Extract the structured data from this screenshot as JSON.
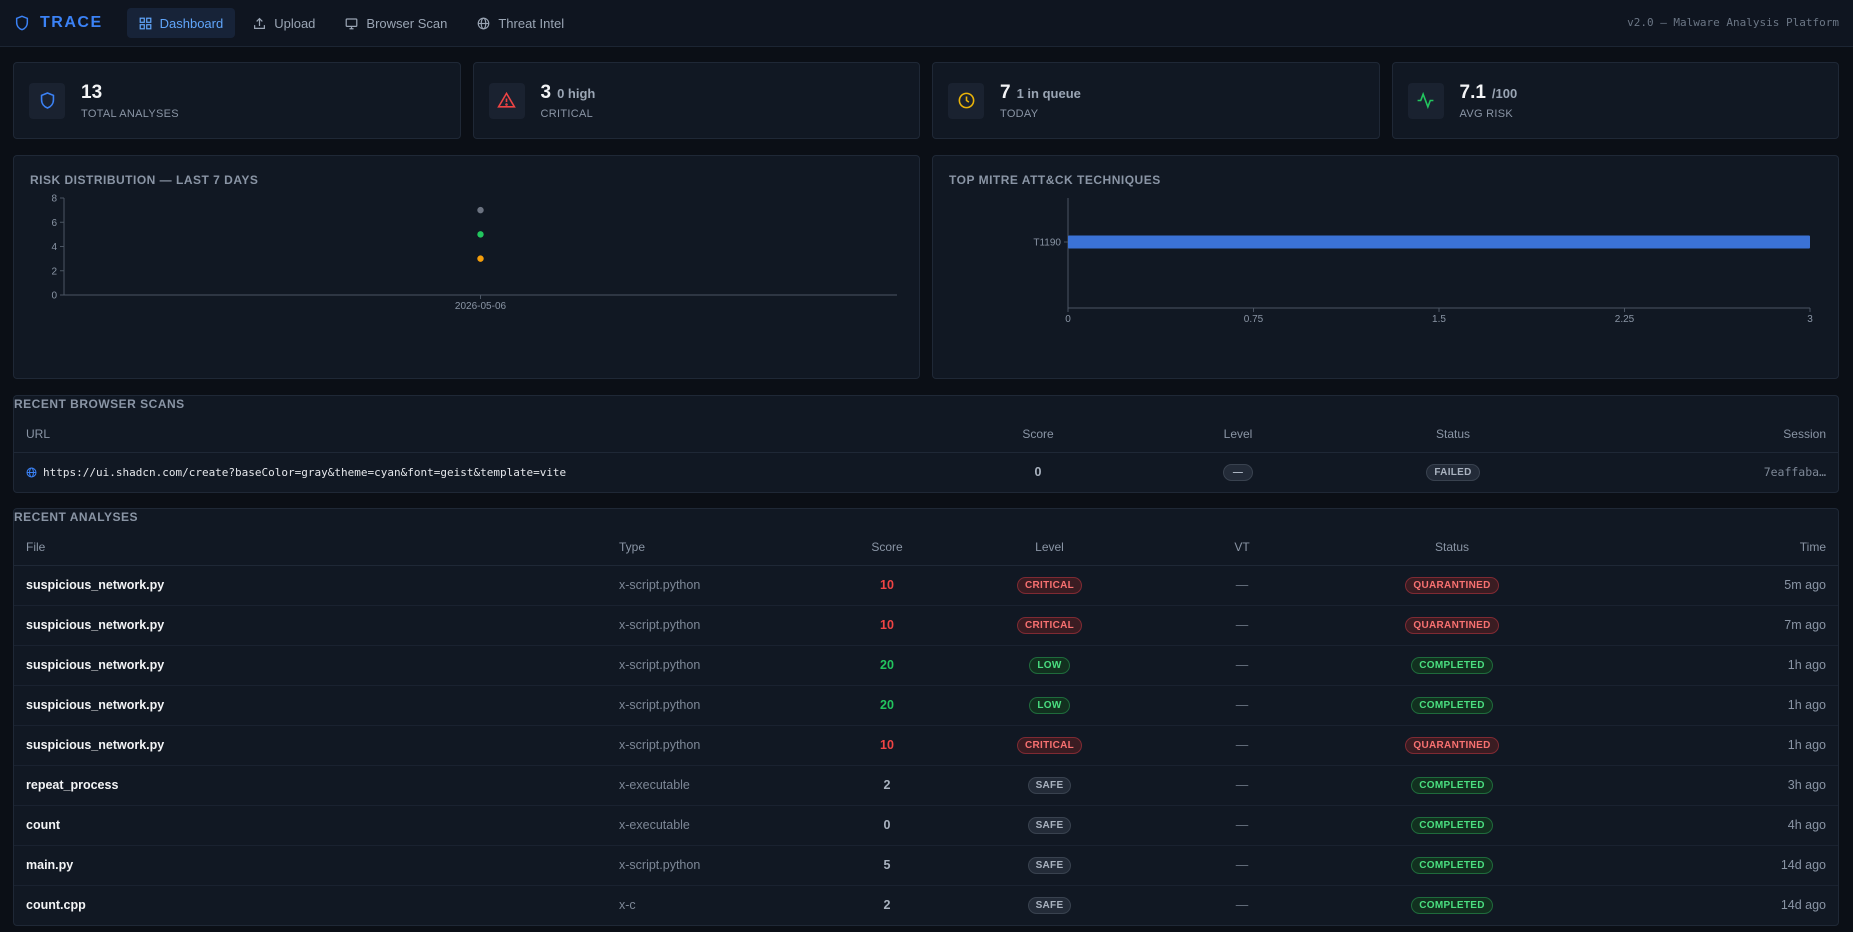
{
  "app": {
    "brand": "TRACE",
    "version": "v2.0 — Malware Analysis Platform"
  },
  "nav": [
    {
      "label": "Dashboard",
      "icon": "grid-icon",
      "active": true
    },
    {
      "label": "Upload",
      "icon": "upload-icon"
    },
    {
      "label": "Browser Scan",
      "icon": "monitor-icon"
    },
    {
      "label": "Threat Intel",
      "icon": "globe-icon"
    }
  ],
  "stats": [
    {
      "value": "13",
      "sub": "",
      "label": "TOTAL ANALYSES",
      "icon": "shield-icon",
      "color": "#3b82f6"
    },
    {
      "value": "3",
      "sub": "0 high",
      "label": "CRITICAL",
      "icon": "alert-triangle-icon",
      "color": "#ef4444"
    },
    {
      "value": "7",
      "sub": "1 in queue",
      "label": "TODAY",
      "icon": "clock-icon",
      "color": "#eab308"
    },
    {
      "value": "7.1",
      "sub": "/100",
      "label": "AVG RISK",
      "icon": "activity-icon",
      "color": "#22c55e"
    }
  ],
  "risk_panel": {
    "title": "RISK DISTRIBUTION — LAST 7 DAYS"
  },
  "mitre_panel": {
    "title": "TOP MITRE ATT&CK TECHNIQUES"
  },
  "chart_data": [
    {
      "type": "scatter",
      "x": [
        "2026-05-06"
      ],
      "series": [
        {
          "values": [
            7
          ],
          "color": "#6b7280"
        },
        {
          "values": [
            5
          ],
          "color": "#22c55e"
        },
        {
          "values": [
            3
          ],
          "color": "#f59e0b"
        }
      ],
      "yticks": [
        "0",
        "2",
        "4",
        "6",
        "8"
      ],
      "ylim": [
        0,
        8
      ]
    },
    {
      "type": "bar",
      "orientation": "horizontal",
      "categories": [
        "T1190"
      ],
      "values": [
        3
      ],
      "xticks": [
        "0",
        "0.75",
        "1.5",
        "2.25",
        "3"
      ],
      "xlim": [
        0,
        3
      ],
      "color": "#3b72d6"
    }
  ],
  "browser_scans": {
    "title": "RECENT BROWSER SCANS",
    "headers": [
      "URL",
      "Score",
      "Level",
      "Status",
      "Session"
    ],
    "rows": [
      {
        "url": "https://ui.shadcn.com/create?baseColor=gray&theme=cyan&font=geist&template=vite",
        "score": "0",
        "level": "—",
        "status": "FAILED",
        "session": "7eaffaba…"
      }
    ]
  },
  "analyses": {
    "title": "RECENT ANALYSES",
    "headers": [
      "File",
      "Type",
      "Score",
      "Level",
      "VT",
      "Status",
      "Time"
    ],
    "rows": [
      {
        "file": "suspicious_network.py",
        "type": "x-script.python",
        "score": "10",
        "level": "CRITICAL",
        "vt": "—",
        "status": "QUARANTINED",
        "time": "5m ago"
      },
      {
        "file": "suspicious_network.py",
        "type": "x-script.python",
        "score": "10",
        "level": "CRITICAL",
        "vt": "—",
        "status": "QUARANTINED",
        "time": "7m ago"
      },
      {
        "file": "suspicious_network.py",
        "type": "x-script.python",
        "score": "20",
        "level": "LOW",
        "vt": "—",
        "status": "COMPLETED",
        "time": "1h ago"
      },
      {
        "file": "suspicious_network.py",
        "type": "x-script.python",
        "score": "20",
        "level": "LOW",
        "vt": "—",
        "status": "COMPLETED",
        "time": "1h ago"
      },
      {
        "file": "suspicious_network.py",
        "type": "x-script.python",
        "score": "10",
        "level": "CRITICAL",
        "vt": "—",
        "status": "QUARANTINED",
        "time": "1h ago"
      },
      {
        "file": "repeat_process",
        "type": "x-executable",
        "score": "2",
        "level": "SAFE",
        "vt": "—",
        "status": "COMPLETED",
        "time": "3h ago"
      },
      {
        "file": "count",
        "type": "x-executable",
        "score": "0",
        "level": "SAFE",
        "vt": "—",
        "status": "COMPLETED",
        "time": "4h ago"
      },
      {
        "file": "main.py",
        "type": "x-script.python",
        "score": "5",
        "level": "SAFE",
        "vt": "—",
        "status": "COMPLETED",
        "time": "14d ago"
      },
      {
        "file": "count.cpp",
        "type": "x-c",
        "score": "2",
        "level": "SAFE",
        "vt": "—",
        "status": "COMPLETED",
        "time": "14d ago"
      }
    ]
  }
}
